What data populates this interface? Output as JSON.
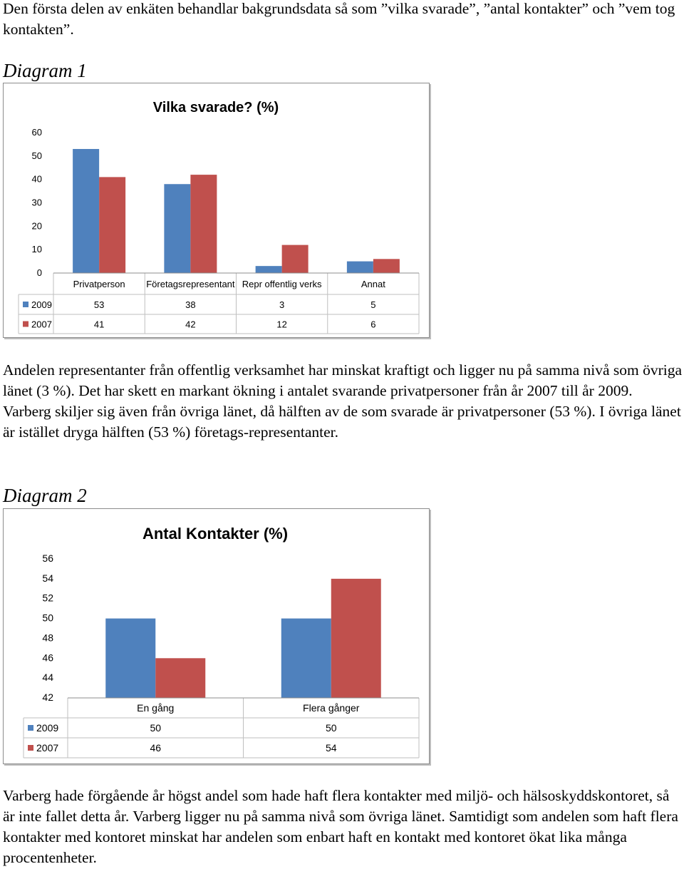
{
  "intro_text": "Den första delen av enkäten behandlar bakgrundsdata så som ”vilka svarade”, ”antal kontakter” och ”vem tog kontakten”.",
  "diagram1_heading": "Diagram 1",
  "paragraph1": "Andelen representanter från offentlig verksamhet har minskat kraftigt och ligger nu på samma nivå som övriga länet (3 %). Det har skett en markant ökning i antalet svarande privatpersoner från år 2007 till år 2009. Varberg skiljer sig även från övriga länet, då hälften av de som svarade är privatpersoner (53 %). I övriga länet är istället dryga hälften (53 %) företags-representanter.",
  "diagram2_heading": "Diagram 2",
  "paragraph2": "Varberg hade förgående år högst andel som hade haft flera kontakter med miljö- och hälsoskyddskontoret, så är inte fallet detta år. Varberg ligger nu på samma nivå som övriga länet. Samtidigt som andelen som haft flera kontakter med kontoret minskat har andelen som enbart haft en kontakt med kontoret ökat lika många procentenheter.",
  "chart_data": [
    {
      "type": "bar",
      "title": "Vilka svarade? (%)",
      "categories": [
        "Privatperson",
        "Företagsrepresentant",
        "Repr offentlig verks",
        "Annat"
      ],
      "series": [
        {
          "name": "2009",
          "values": [
            53,
            38,
            3,
            5
          ],
          "color": "#4f81bd"
        },
        {
          "name": "2007",
          "values": [
            41,
            42,
            12,
            6
          ],
          "color": "#c0504d"
        }
      ],
      "yticks": [
        "0",
        "10",
        "20",
        "30",
        "40",
        "50",
        "60"
      ],
      "ylim": [
        0,
        60
      ],
      "legend": "data-table",
      "grid": false
    },
    {
      "type": "bar",
      "title": "Antal Kontakter (%)",
      "categories": [
        "En gång",
        "Flera gånger"
      ],
      "series": [
        {
          "name": "2009",
          "values": [
            50,
            50
          ],
          "color": "#4f81bd"
        },
        {
          "name": "2007",
          "values": [
            46,
            54
          ],
          "color": "#c0504d"
        }
      ],
      "yticks": [
        "42",
        "44",
        "46",
        "48",
        "50",
        "52",
        "54",
        "56"
      ],
      "ylim": [
        42,
        56
      ],
      "legend": "data-table",
      "grid": false
    }
  ]
}
